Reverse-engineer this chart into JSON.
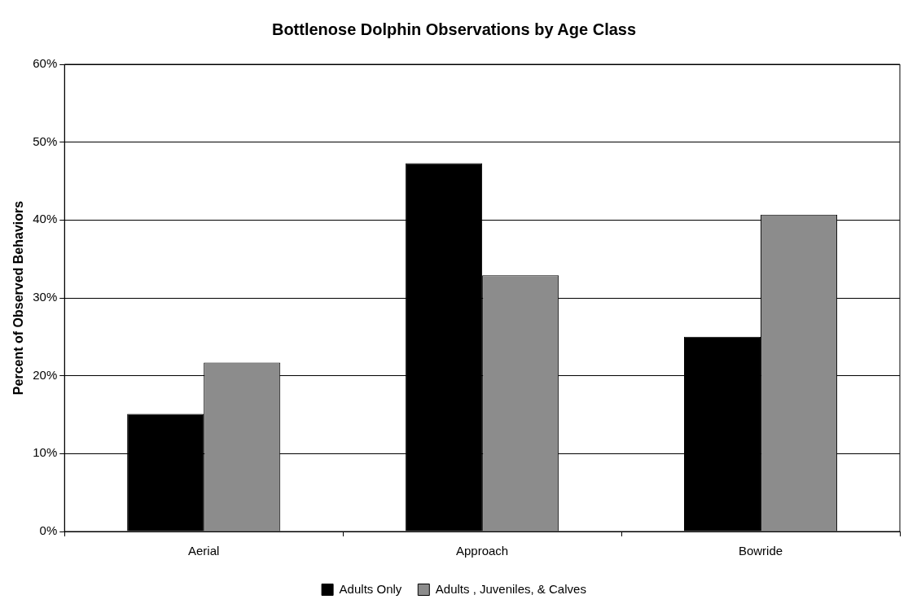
{
  "chart_data": {
    "type": "bar",
    "title": "Bottlenose Dolphin Observations by Age Class",
    "ylabel": "Percent of Observed Behaviors",
    "categories": [
      "Aerial",
      "Approach",
      "Bowride"
    ],
    "series": [
      {
        "name": "Adults Only",
        "color": "#000000",
        "values": [
          15.1,
          47.3,
          25.0
        ]
      },
      {
        "name": "Adults , Juveniles, & Calves",
        "color": "#8c8c8c",
        "values": [
          21.7,
          32.9,
          40.7
        ]
      }
    ],
    "ylim": [
      0,
      60
    ],
    "yticks": [
      {
        "value": 0,
        "label": "0%"
      },
      {
        "value": 10,
        "label": "10%"
      },
      {
        "value": 20,
        "label": "20%"
      },
      {
        "value": 30,
        "label": "30%"
      },
      {
        "value": 40,
        "label": "40%"
      },
      {
        "value": 50,
        "label": "50%"
      },
      {
        "value": 60,
        "label": "60%"
      }
    ],
    "grid": "y",
    "legend": "bottom"
  }
}
